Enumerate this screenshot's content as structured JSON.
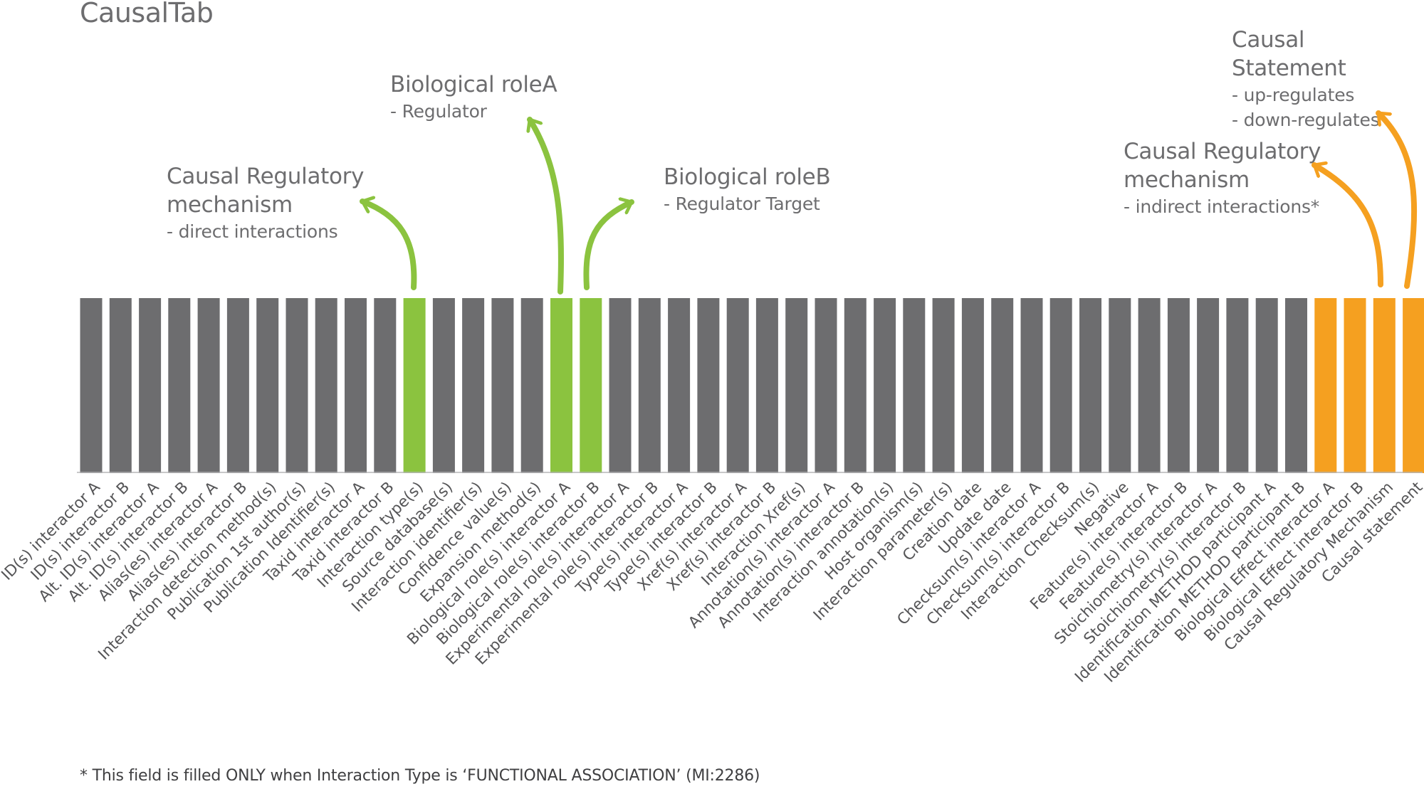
{
  "title": "CausalTab",
  "colors": {
    "gray": "#6d6d6f",
    "green": "#8bc33f",
    "orange": "#f5a020",
    "text": "#6d6d6f",
    "label": "#555557"
  },
  "columns": [
    {
      "label": "ID(s) interactor A",
      "group": "gray"
    },
    {
      "label": "ID(s) interactor B",
      "group": "gray"
    },
    {
      "label": "Alt. ID(s) interactor A",
      "group": "gray"
    },
    {
      "label": "Alt. ID(s) interactor B",
      "group": "gray"
    },
    {
      "label": "Alias(es) interactor A",
      "group": "gray"
    },
    {
      "label": "Alias(es) interactor B",
      "group": "gray"
    },
    {
      "label": "Interaction detection method(s)",
      "group": "gray"
    },
    {
      "label": "Publication 1st author(s)",
      "group": "gray"
    },
    {
      "label": "Publication Identifier(s)",
      "group": "gray"
    },
    {
      "label": "Taxid interactor A",
      "group": "gray"
    },
    {
      "label": "Taxid interactor B",
      "group": "gray"
    },
    {
      "label": "Interaction type(s)",
      "group": "green"
    },
    {
      "label": "Source database(s)",
      "group": "gray"
    },
    {
      "label": "Interaction identifier(s)",
      "group": "gray"
    },
    {
      "label": "Confidence value(s)",
      "group": "gray"
    },
    {
      "label": "Expansion method(s)",
      "group": "gray"
    },
    {
      "label": "Biological role(s) interactor A",
      "group": "green"
    },
    {
      "label": "Biological role(s) interactor B",
      "group": "green"
    },
    {
      "label": "Experimental role(s) interactor A",
      "group": "gray"
    },
    {
      "label": "Experimental role(s) interactor B",
      "group": "gray"
    },
    {
      "label": "Type(s) interactor A",
      "group": "gray"
    },
    {
      "label": "Type(s) interactor B",
      "group": "gray"
    },
    {
      "label": "Xref(s) interactor A",
      "group": "gray"
    },
    {
      "label": "Xref(s) interactor B",
      "group": "gray"
    },
    {
      "label": "Interaction Xref(s)",
      "group": "gray"
    },
    {
      "label": "Annotation(s) interactor A",
      "group": "gray"
    },
    {
      "label": "Annotation(s) interactor B",
      "group": "gray"
    },
    {
      "label": "Interaction annotation(s)",
      "group": "gray"
    },
    {
      "label": "Host organism(s)",
      "group": "gray"
    },
    {
      "label": "Interaction parameter(s)",
      "group": "gray"
    },
    {
      "label": "Creation date",
      "group": "gray"
    },
    {
      "label": "Update date",
      "group": "gray"
    },
    {
      "label": "Checksum(s) interactor A",
      "group": "gray"
    },
    {
      "label": "Checksum(s) interactor B",
      "group": "gray"
    },
    {
      "label": "Interaction Checksum(s)",
      "group": "gray"
    },
    {
      "label": "Negative",
      "group": "gray"
    },
    {
      "label": "Feature(s) interactor A",
      "group": "gray"
    },
    {
      "label": "Feature(s) interactor B",
      "group": "gray"
    },
    {
      "label": "Stoichiometry(s) interactor A",
      "group": "gray"
    },
    {
      "label": "Stoichiometry(s) interactor B",
      "group": "gray"
    },
    {
      "label": "Identification METHOD participant A",
      "group": "gray"
    },
    {
      "label": "Identification METHOD participant B",
      "group": "gray"
    },
    {
      "label": "Biological Effect interactor A",
      "group": "orange"
    },
    {
      "label": "Biological Effect interactor B",
      "group": "orange"
    },
    {
      "label": "Causal Regulatory Mechanism",
      "group": "orange"
    },
    {
      "label": "Causal statement",
      "group": "orange"
    }
  ],
  "callouts": {
    "direct": {
      "head1": "Causal Regulatory",
      "head2": "mechanism",
      "sub1": "- direct interactions"
    },
    "roleA": {
      "head1": "Biological roleA",
      "sub1": "- Regulator"
    },
    "roleB": {
      "head1": "Biological roleB",
      "sub1": "- Regulator Target"
    },
    "indirect": {
      "head1": "Causal Regulatory",
      "head2": "mechanism",
      "sub1": "- indirect interactions*"
    },
    "statement": {
      "head1": "Causal Statement",
      "sub1": "- up-regulates",
      "sub2": "- down-regulates"
    }
  },
  "footnote": "* This field is filled ONLY when Interaction Type is  ‘FUNCTIONAL ASSOCIATION’ (MI:2286)"
}
